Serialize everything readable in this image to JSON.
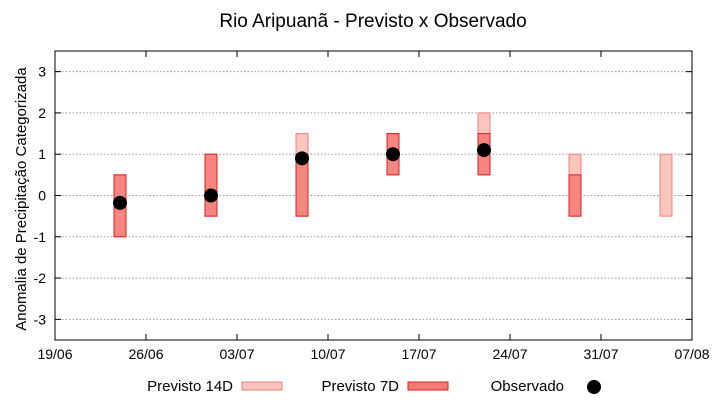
{
  "chart_data": {
    "type": "errorbar-scatter",
    "title": "Rio Aripuanã - Previsto x Observado",
    "ylabel": "Anomalia de Precipitação Categorizada",
    "xlabel": "",
    "ylim": [
      -3.5,
      3.5
    ],
    "yticks": [
      "-3",
      "-2",
      "-1",
      "0",
      "1",
      "2",
      "3"
    ],
    "ytick_values": [
      -3,
      -2,
      -1,
      0,
      1,
      2,
      3
    ],
    "xticks": [
      "19/06",
      "26/06",
      "03/07",
      "10/07",
      "17/07",
      "24/07",
      "31/07",
      "07/08"
    ],
    "grid": true,
    "legend_position": "bottom",
    "colors": {
      "previsto_14d_fill": "#f9c5bd",
      "previsto_14d_stroke": "#f08080",
      "previsto_7d_fill": "#f77a75",
      "previsto_7d_stroke": "#d42020",
      "observado": "#000000"
    },
    "series": [
      {
        "name": "Previsto 14D",
        "kind": "range",
        "points": [
          {
            "x": 5,
            "low": -1,
            "high": 0.5
          },
          {
            "x": 12,
            "low": -0.5,
            "high": 1
          },
          {
            "x": 19,
            "low": -0.5,
            "high": 1.5
          },
          {
            "x": 26,
            "low": 0.5,
            "high": 1.5
          },
          {
            "x": 33,
            "low": 0.5,
            "high": 2
          },
          {
            "x": 40,
            "low": -0.5,
            "high": 1
          },
          {
            "x": 47,
            "low": -0.5,
            "high": 1
          }
        ]
      },
      {
        "name": "Previsto 7D",
        "kind": "range",
        "points": [
          {
            "x": 5,
            "low": -1,
            "high": 0.5
          },
          {
            "x": 12,
            "low": -0.5,
            "high": 1
          },
          {
            "x": 19,
            "low": -0.5,
            "high": 1
          },
          {
            "x": 26,
            "low": 0.5,
            "high": 1.5
          },
          {
            "x": 33,
            "low": 0.5,
            "high": 1.5
          },
          {
            "x": 40,
            "low": -0.5,
            "high": 0.5
          }
        ]
      },
      {
        "name": "Observado",
        "kind": "point",
        "points": [
          {
            "x": 5,
            "y": -0.18
          },
          {
            "x": 12,
            "y": 0
          },
          {
            "x": 19,
            "y": 0.9
          },
          {
            "x": 26,
            "y": 1
          },
          {
            "x": 33,
            "y": 1.1
          }
        ]
      }
    ]
  }
}
